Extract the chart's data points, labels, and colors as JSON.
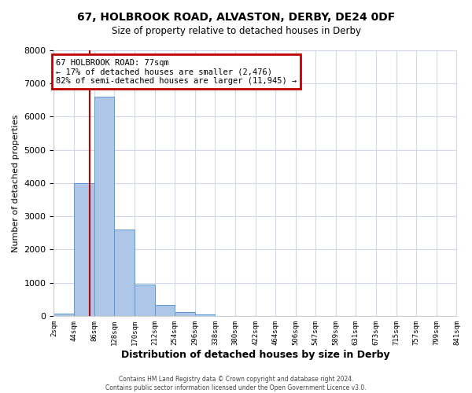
{
  "title": "67, HOLBROOK ROAD, ALVASTON, DERBY, DE24 0DF",
  "subtitle": "Size of property relative to detached houses in Derby",
  "xlabel": "Distribution of detached houses by size in Derby",
  "ylabel": "Number of detached properties",
  "bin_edges": [
    2,
    44,
    86,
    128,
    170,
    212,
    254,
    296,
    338,
    380,
    422,
    464,
    506,
    547,
    589,
    631,
    673,
    715,
    757,
    799,
    841
  ],
  "bin_labels": [
    "2sqm",
    "44sqm",
    "86sqm",
    "128sqm",
    "170sqm",
    "212sqm",
    "254sqm",
    "296sqm",
    "338sqm",
    "380sqm",
    "422sqm",
    "464sqm",
    "506sqm",
    "547sqm",
    "589sqm",
    "631sqm",
    "673sqm",
    "715sqm",
    "757sqm",
    "799sqm",
    "841sqm"
  ],
  "bar_heights": [
    60,
    4000,
    6600,
    2600,
    950,
    320,
    120,
    50,
    0,
    0,
    0,
    0,
    0,
    0,
    0,
    0,
    0,
    0,
    0,
    0
  ],
  "bar_color": "#aec6e8",
  "bar_edge_color": "#5b9bd5",
  "property_line_x": 77,
  "property_line_color": "#c00000",
  "ylim": [
    0,
    8000
  ],
  "yticks": [
    0,
    1000,
    2000,
    3000,
    4000,
    5000,
    6000,
    7000,
    8000
  ],
  "annotation_title": "67 HOLBROOK ROAD: 77sqm",
  "annotation_line1": "← 17% of detached houses are smaller (2,476)",
  "annotation_line2": "82% of semi-detached houses are larger (11,945) →",
  "annotation_box_color": "#c00000",
  "footer_line1": "Contains HM Land Registry data © Crown copyright and database right 2024.",
  "footer_line2": "Contains public sector information licensed under the Open Government Licence v3.0.",
  "background_color": "#ffffff",
  "grid_color": "#d0d8e8"
}
